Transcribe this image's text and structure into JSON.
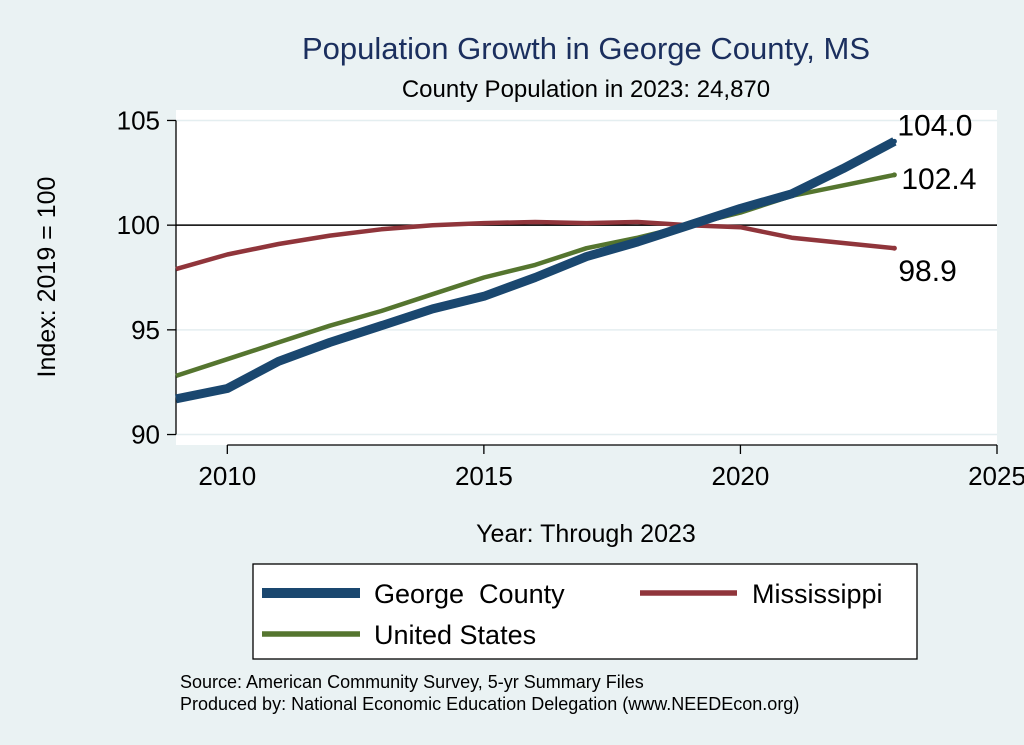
{
  "chart_data": {
    "type": "line",
    "title": "Population Growth in George County, MS",
    "subtitle": "County Population in 2023: 24,870",
    "xlabel": "Year: Through 2023",
    "ylabel": "Index: 2019 = 100",
    "xlim": [
      2009,
      2025
    ],
    "ylim": [
      89.5,
      105.5
    ],
    "xticks": [
      2010,
      2015,
      2020,
      2025
    ],
    "yticks": [
      90,
      95,
      100,
      105
    ],
    "x_tick_labels": [
      "2010",
      "2015",
      "2020",
      "2025"
    ],
    "y_tick_labels": [
      "90",
      "95",
      "100",
      "105"
    ],
    "reference_line": 100,
    "grid": true,
    "legend_position": "bottom",
    "x": [
      2009,
      2010,
      2011,
      2012,
      2013,
      2014,
      2015,
      2016,
      2017,
      2018,
      2019,
      2020,
      2021,
      2022,
      2023
    ],
    "series": [
      {
        "name": "George  County",
        "color": "#1a476f",
        "values": [
          91.7,
          92.2,
          93.5,
          94.4,
          95.2,
          96.0,
          96.6,
          97.5,
          98.5,
          99.2,
          100.0,
          100.8,
          101.5,
          102.7,
          104.0
        ],
        "end_label": "104.0"
      },
      {
        "name": "Mississippi",
        "color": "#90353b",
        "values": [
          97.9,
          98.6,
          99.1,
          99.5,
          99.8,
          100.0,
          100.1,
          100.15,
          100.1,
          100.15,
          100.0,
          99.9,
          99.4,
          99.15,
          98.9
        ],
        "end_label": "98.9"
      },
      {
        "name": "United States",
        "color": "#55752f",
        "values": [
          92.8,
          93.6,
          94.4,
          95.2,
          95.9,
          96.7,
          97.5,
          98.1,
          98.9,
          99.4,
          100.0,
          100.6,
          101.4,
          101.9,
          102.4
        ],
        "end_label": "102.4"
      }
    ]
  },
  "source": {
    "line1": "Source: American Community Survey, 5-yr Summary Files",
    "line2": "Produced by: National Economic Education Delegation (www.NEEDEcon.org)"
  }
}
